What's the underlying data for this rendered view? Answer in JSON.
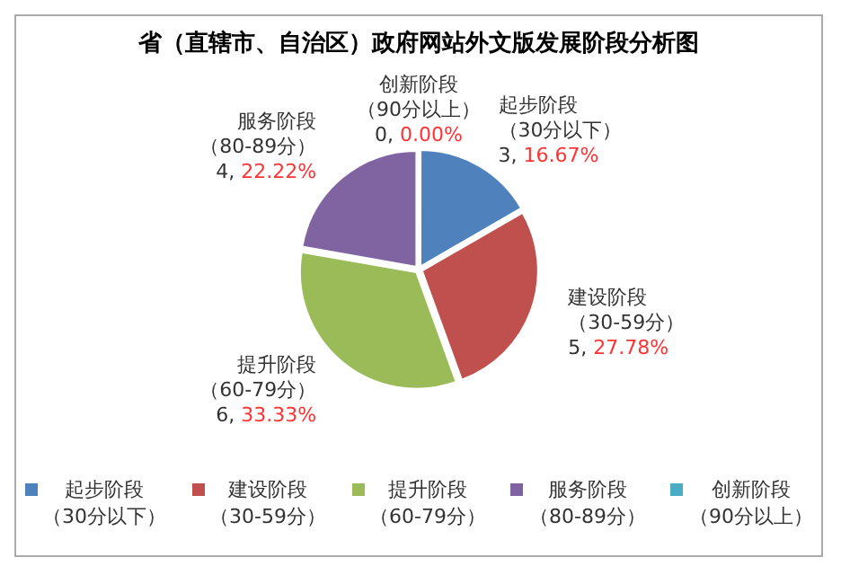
{
  "chart_data": {
    "type": "pie",
    "title": "省（直辖市、自治区）政府网站外文版发展阶段分析图",
    "categories": [
      "起步阶段（30分以下）",
      "建设阶段（30-59分）",
      "提升阶段（60-79分）",
      "服务阶段（80-89分）",
      "创新阶段（90分以上）"
    ],
    "values": [
      3,
      5,
      6,
      4,
      0
    ],
    "colors": [
      "#4f81bd",
      "#c0504d",
      "#9bbb59",
      "#8064a2",
      "#4bacc6"
    ],
    "value_labels": [
      "3, 16.67%",
      "5, 27.78%",
      "6, 33.33%",
      "4, 22.22%",
      "0, 0.00%"
    ],
    "legend": "bottom"
  }
}
